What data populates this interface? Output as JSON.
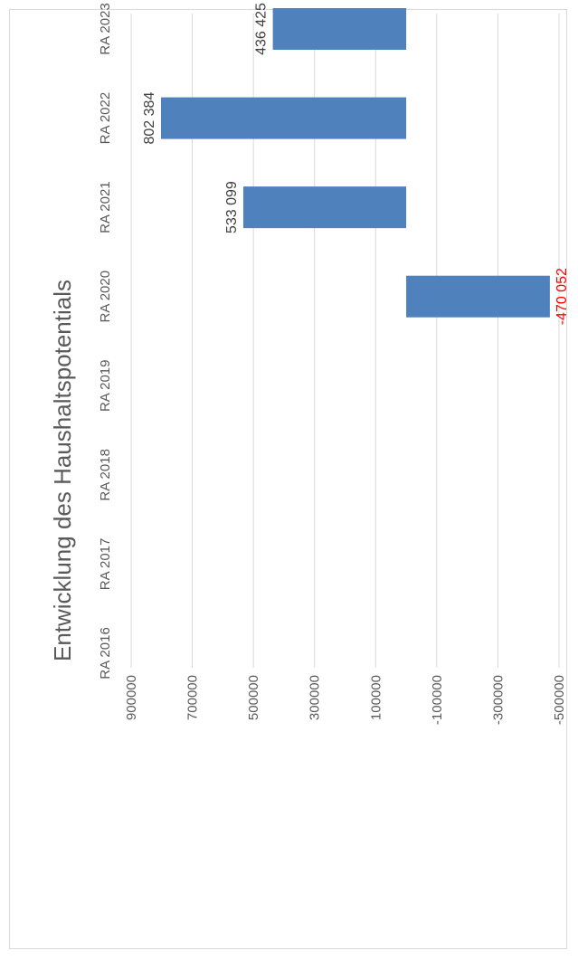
{
  "chart_data": {
    "type": "bar",
    "orientation": "rotated-90",
    "title": "Entwicklung des Haushaltspotentials",
    "categories": [
      "RA 2016",
      "RA 2017",
      "RA 2018",
      "RA 2019",
      "RA 2020",
      "RA 2021",
      "RA 2022",
      "RA 2023"
    ],
    "values": [
      null,
      null,
      null,
      null,
      -470052,
      533099,
      802384,
      436425
    ],
    "data_labels": [
      "",
      "",
      "",
      "",
      "-470 052",
      "533 099",
      "802 384",
      "436 425"
    ],
    "ylim": [
      -500000,
      900000
    ],
    "yticks": [
      900000,
      700000,
      500000,
      300000,
      100000,
      -100000,
      -300000,
      -500000
    ],
    "grid": true,
    "colors": {
      "bar": "#4f81bd",
      "negative_label": "#ff0000",
      "label": "#404040",
      "grid": "#d9d9d9"
    }
  }
}
